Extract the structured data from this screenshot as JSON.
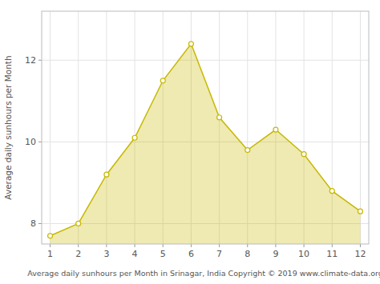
{
  "chart_data": {
    "type": "area",
    "x": [
      1,
      2,
      3,
      4,
      5,
      6,
      7,
      8,
      9,
      10,
      11,
      12
    ],
    "values": [
      7.7,
      8.0,
      9.2,
      10.1,
      11.5,
      12.4,
      10.6,
      9.8,
      10.3,
      9.7,
      8.8,
      8.3
    ],
    "color": "#c8b800",
    "marker": "circle",
    "xlabel": "Average daily sunhours per Month in Srinagar, India Copyright © 2019 www.climate-data.org",
    "ylabel": "Average daily sunhours per Month",
    "xlim": [
      0.7,
      12.3
    ],
    "ylim": [
      7.5,
      13.2
    ],
    "xticks": [
      1,
      2,
      3,
      4,
      5,
      6,
      7,
      8,
      9,
      10,
      11,
      12
    ],
    "yticks": [
      8,
      10,
      12
    ],
    "grid": true
  }
}
